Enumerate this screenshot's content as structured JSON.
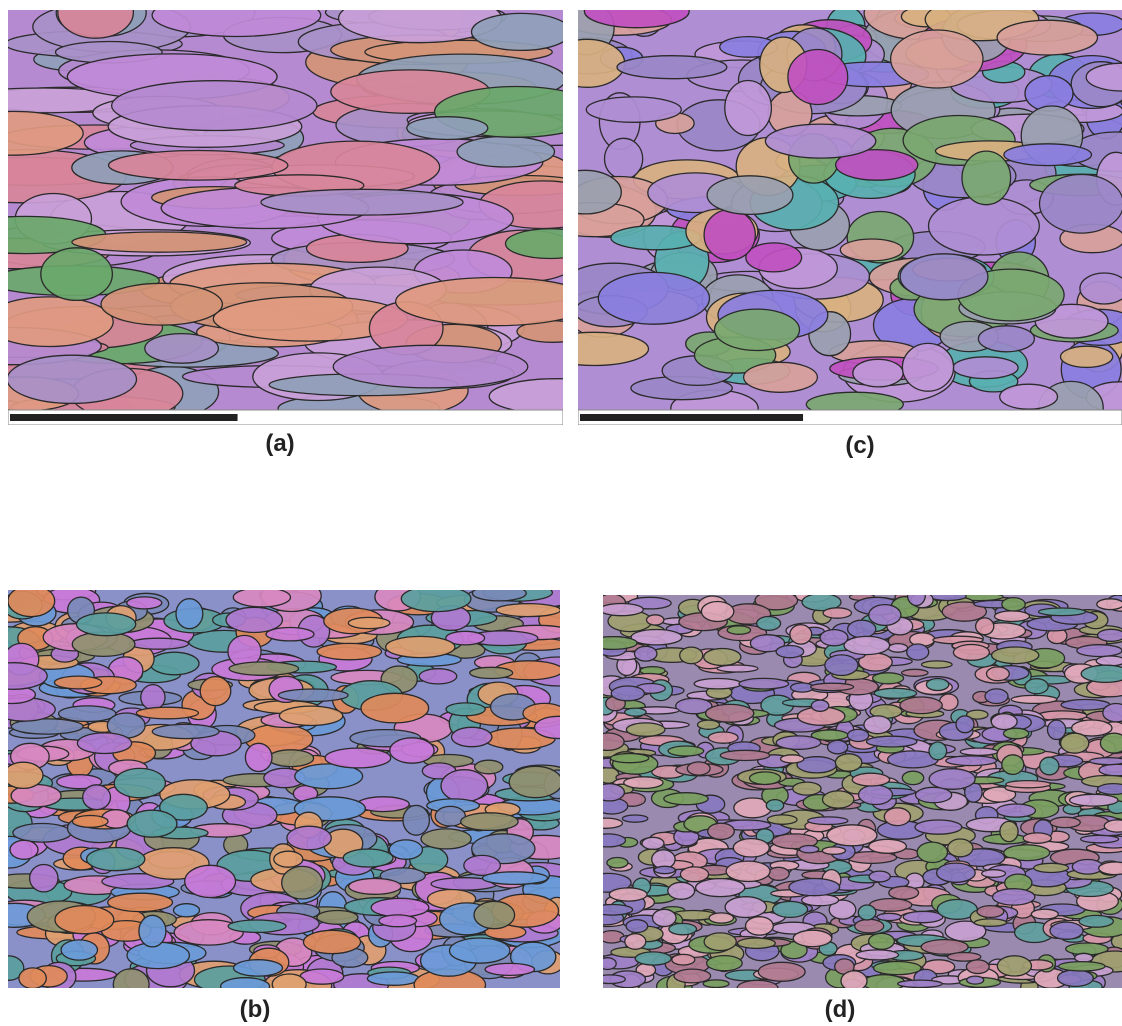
{
  "panels": [
    {
      "label": "(a)"
    },
    {
      "label": "(c)"
    },
    {
      "label": "(b)"
    },
    {
      "label": "(d)"
    }
  ]
}
